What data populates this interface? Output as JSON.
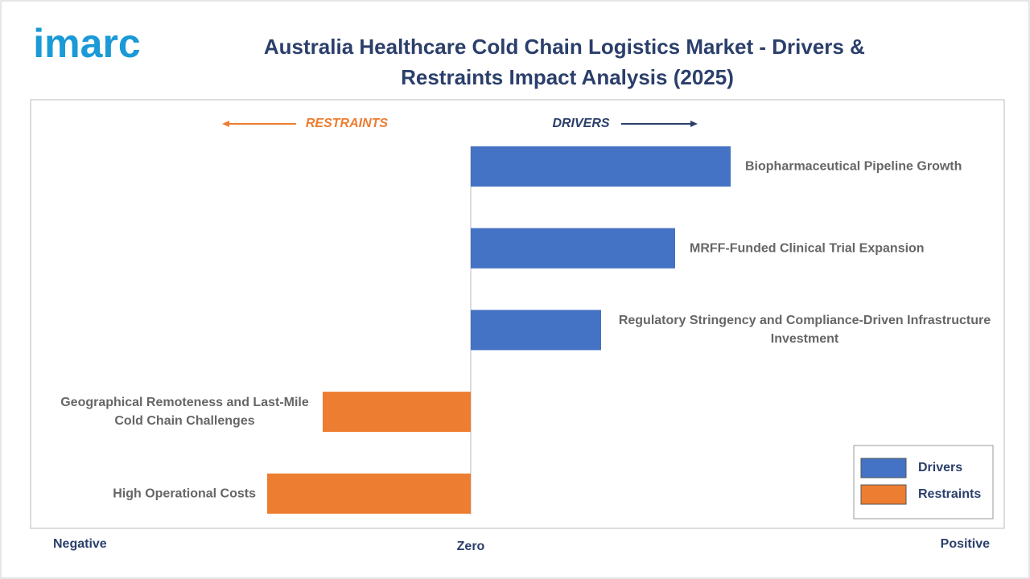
{
  "brand": "imarc",
  "chart_data": {
    "type": "diverging-bar",
    "title": "Australia Healthcare Cold Chain Logistics Market - Drivers & Restraints Impact Analysis (2025)",
    "restraints_header": "RESTRAINTS",
    "drivers_header": "DRIVERS",
    "categories": [
      "Biopharmaceutical Pipeline Growth",
      "MRFF-Funded Clinical Trial Expansion",
      "Regulatory Stringency and Compliance-Driven Infrastructure Investment",
      "Geographical Remoteness and Last-Mile Cold Chain Challenges",
      "High Operational Costs"
    ],
    "series": [
      {
        "name": "Drivers",
        "color": "#4472c4",
        "values": [
          3.23,
          2.54,
          1.62,
          null,
          null
        ]
      },
      {
        "name": "Restraints",
        "color": "#ed7d31",
        "values": [
          null,
          null,
          null,
          -1.84,
          -2.53
        ]
      }
    ],
    "xlim": [
      -5.47,
      6.63
    ],
    "xticks": [
      {
        "value": -5.47,
        "label": "Negative"
      },
      {
        "value": 0,
        "label": "Zero"
      },
      {
        "value": 6.63,
        "label": "Positive"
      }
    ],
    "legend": "bottom-right"
  }
}
